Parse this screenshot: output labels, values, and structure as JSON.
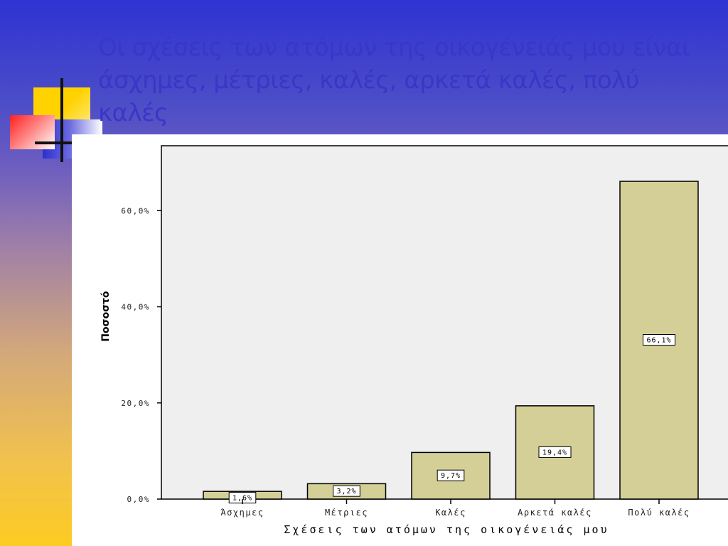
{
  "slide": {
    "title": "Οι σχέσεις των ατόμων της οικογένειάς μου είναι άσχημες, μέτριες, καλές, αρκετά καλές, πολύ καλές"
  },
  "colors": {
    "bar_fill": "#d3cf96",
    "plot_bg": "#efefef",
    "title_color": "#3936c8"
  },
  "chart_data": {
    "type": "bar",
    "categories": [
      "Άσχημες",
      "Μέτριες",
      "Καλές",
      "Αρκετά καλές",
      "Πολύ καλές"
    ],
    "values": [
      1.6,
      3.2,
      9.7,
      19.4,
      66.1
    ],
    "data_labels": [
      "1,6%",
      "3,2%",
      "9,7%",
      "19,4%",
      "66,1%"
    ],
    "title": "",
    "xlabel": "Σχέσεις των ατόμων της οικογένειάς μου",
    "ylabel": "Ποσοστό",
    "ylim": [
      0,
      73.5
    ],
    "yticks": [
      0,
      20,
      40,
      60
    ],
    "ytick_labels": [
      "0,0%",
      "20,0%",
      "40,0%",
      "60,0%"
    ],
    "grid": false,
    "legend": "none"
  }
}
